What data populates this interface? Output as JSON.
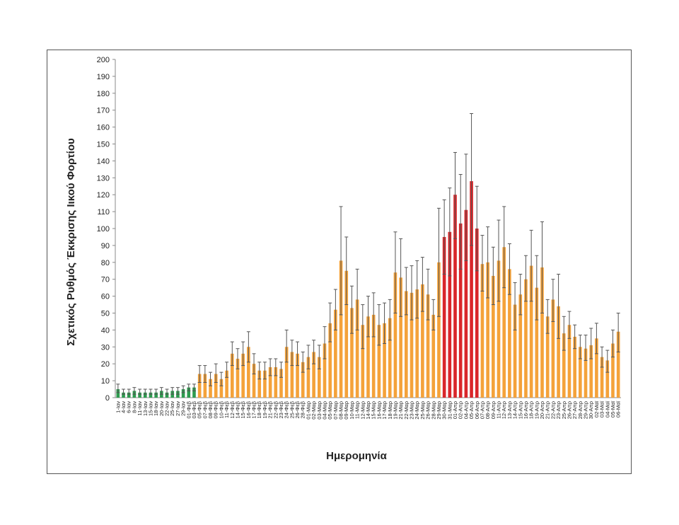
{
  "chart_data": {
    "type": "bar",
    "title": "",
    "ylabel": "Σχετικός Ρυθμός Έκκρισης Ιικού Φορτίου",
    "xlabel": "Ημερομηνία",
    "ylim": [
      0,
      200
    ],
    "yticks": [
      0,
      10,
      20,
      30,
      40,
      50,
      60,
      70,
      80,
      90,
      100,
      110,
      120,
      130,
      140,
      150,
      160,
      170,
      180,
      190,
      200
    ],
    "grid": false,
    "legend": "none",
    "colors": {
      "green": "#2e9b4f",
      "orange": "#f4a23a",
      "red": "#d9262a",
      "error": "#555555",
      "axis": "#888888"
    },
    "categories": [
      "1-Ιαν",
      "4-Ιαν",
      "6-Ιαν",
      "8-Ιαν",
      "11-Ιαν",
      "13-Ιαν",
      "15-Ιαν",
      "18-Ιαν",
      "20-Ιαν",
      "22-Ιαν",
      "25-Ιαν",
      "27-Ιαν",
      "29-Ιαν",
      "01-Φεβ",
      "03-Φεβ",
      "05-Φεβ",
      "07-Φεβ",
      "08-Φεβ",
      "09-Φεβ",
      "10-Φεβ",
      "11-Φεβ",
      "12-Φεβ",
      "14-Φεβ",
      "15-Φεβ",
      "16-Φεβ",
      "17-Φεβ",
      "18-Φεβ",
      "19-Φεβ",
      "21-Φεβ",
      "22-Φεβ",
      "23-Φεβ",
      "24-Φεβ",
      "25-Φεβ",
      "26-Φεβ",
      "28-Φεβ",
      "01-Μαρ",
      "02-Μαρ",
      "03-Μαρ",
      "04-Μαρ",
      "05-Μαρ",
      "07-Μαρ",
      "08-Μαρ",
      "09-Μαρ",
      "10-Μαρ",
      "11-Μαρ",
      "12-Μαρ",
      "14-Μαρ",
      "15-Μαρ",
      "16-Μαρ",
      "17-Μαρ",
      "18-Μαρ",
      "19-Μαρ",
      "21-Μαρ",
      "22-Μαρ",
      "23-Μαρ",
      "24-Μαρ",
      "25-Μαρ",
      "26-Μαρ",
      "28-Μαρ",
      "29-Μαρ",
      "30-Μαρ",
      "31-Μαρ",
      "01-Απρ",
      "02-Απρ",
      "04-Απρ",
      "05-Απρ",
      "06-Απρ",
      "07-Απρ",
      "08-Απρ",
      "09-Απρ",
      "11-Απρ",
      "12-Απρ",
      "13-Απρ",
      "14-Απρ",
      "15-Απρ",
      "16-Απρ",
      "18-Απρ",
      "19-Απρ",
      "20-Απρ",
      "21-Απρ",
      "22-Απρ",
      "23-Απρ",
      "25-Απρ",
      "26-Απρ",
      "27-Απρ",
      "28-Απρ",
      "29-Απρ",
      "30-Απρ",
      "02-Μαϊ",
      "03-Μαϊ",
      "04-Μαϊ",
      "05-Μαϊ",
      "06-Μαϊ"
    ],
    "values": [
      5,
      3,
      3,
      4,
      3,
      3,
      3,
      3,
      4,
      3,
      4,
      4,
      5,
      6,
      6,
      14,
      14,
      11,
      14,
      11,
      16,
      26,
      23,
      26,
      30,
      20,
      16,
      16,
      18,
      18,
      17,
      30,
      27,
      26,
      21,
      24,
      27,
      24,
      32,
      44,
      52,
      81,
      75,
      53,
      58,
      43,
      48,
      49,
      43,
      44,
      47,
      74,
      71,
      63,
      62,
      64,
      67,
      61,
      49,
      80,
      95,
      98,
      120,
      103,
      111,
      128,
      100,
      79,
      80,
      72,
      81,
      89,
      76,
      55,
      61,
      70,
      78,
      65,
      77,
      48,
      58,
      54,
      38,
      43,
      36,
      30,
      29,
      31,
      35,
      24,
      22,
      32,
      39
    ],
    "error_hi": [
      8,
      5,
      5,
      6,
      5,
      5,
      5,
      5,
      6,
      5,
      6,
      6,
      7,
      8,
      8,
      19,
      19,
      15,
      20,
      15,
      21,
      33,
      29,
      33,
      39,
      26,
      21,
      21,
      23,
      23,
      21,
      40,
      34,
      33,
      27,
      31,
      34,
      31,
      42,
      56,
      64,
      113,
      95,
      66,
      76,
      55,
      60,
      62,
      55,
      56,
      58,
      98,
      94,
      77,
      78,
      81,
      83,
      76,
      58,
      112,
      117,
      124,
      145,
      132,
      144,
      168,
      125,
      96,
      101,
      89,
      105,
      113,
      91,
      68,
      73,
      84,
      99,
      84,
      104,
      58,
      70,
      73,
      48,
      51,
      43,
      37,
      37,
      41,
      44,
      30,
      28,
      40,
      50
    ],
    "error_lo": [
      3,
      2,
      2,
      2,
      2,
      2,
      2,
      2,
      2,
      2,
      2,
      2,
      3,
      4,
      4,
      9,
      9,
      7,
      9,
      7,
      12,
      19,
      17,
      19,
      21,
      14,
      11,
      11,
      13,
      13,
      12,
      21,
      19,
      19,
      15,
      17,
      20,
      17,
      23,
      33,
      40,
      49,
      55,
      38,
      40,
      29,
      36,
      36,
      31,
      32,
      34,
      50,
      48,
      49,
      46,
      47,
      51,
      46,
      40,
      48,
      73,
      72,
      94,
      76,
      81,
      90,
      75,
      63,
      59,
      55,
      57,
      65,
      61,
      40,
      49,
      57,
      57,
      46,
      50,
      38,
      45,
      35,
      28,
      35,
      29,
      23,
      22,
      23,
      26,
      18,
      15,
      24,
      27
    ],
    "color_groups": [
      "green",
      "green",
      "green",
      "green",
      "green",
      "green",
      "green",
      "green",
      "green",
      "green",
      "green",
      "green",
      "green",
      "green",
      "green",
      "orange",
      "orange",
      "orange",
      "orange",
      "orange",
      "orange",
      "orange",
      "orange",
      "orange",
      "orange",
      "orange",
      "orange",
      "orange",
      "orange",
      "orange",
      "orange",
      "orange",
      "orange",
      "orange",
      "orange",
      "orange",
      "orange",
      "orange",
      "orange",
      "orange",
      "orange",
      "orange",
      "orange",
      "orange",
      "orange",
      "orange",
      "orange",
      "orange",
      "orange",
      "orange",
      "orange",
      "orange",
      "orange",
      "orange",
      "orange",
      "orange",
      "orange",
      "orange",
      "orange",
      "orange",
      "red",
      "red",
      "red",
      "red",
      "red",
      "red",
      "red",
      "orange",
      "orange",
      "orange",
      "orange",
      "orange",
      "orange",
      "orange",
      "orange",
      "orange",
      "orange",
      "orange",
      "orange",
      "orange",
      "orange",
      "orange",
      "orange",
      "orange",
      "orange",
      "orange",
      "orange",
      "orange",
      "orange",
      "orange",
      "orange",
      "orange",
      "orange"
    ]
  }
}
